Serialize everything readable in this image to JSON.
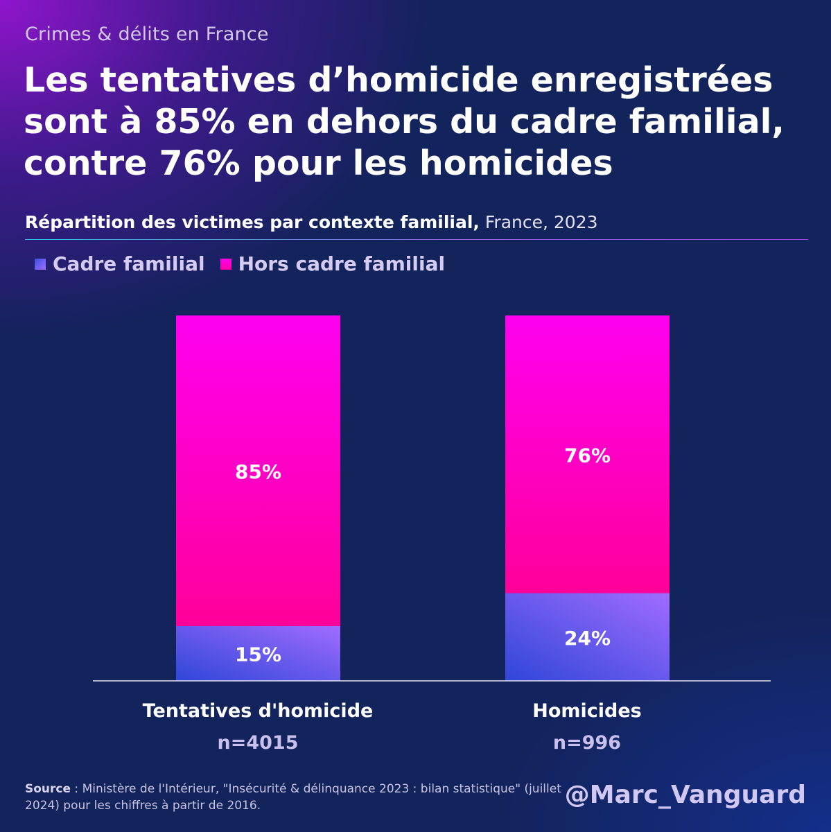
{
  "kicker": "Crimes & délits en France",
  "headline": "Les tentatives d’homicide enregistrées sont à 85% en dehors du cadre familial, contre 76% pour les homicides",
  "subtitle": {
    "strong": "Répartition des victimes par contexte familial,",
    "light": " France, 2023"
  },
  "legend": {
    "cadre": "Cadre familial",
    "hors": "Hors cadre familial"
  },
  "colors": {
    "cadre_start": "#2f47d8",
    "cadre_end": "#a06cff",
    "hors_top": "#ff00f0",
    "hors_bottom": "#ff0099"
  },
  "categories": [
    {
      "label": "Tentatives d'homicide",
      "n": "n=4015"
    },
    {
      "label": "Homicides",
      "n": "n=996"
    }
  ],
  "chart_data": {
    "type": "bar",
    "stacked": true,
    "categories": [
      "Tentatives d'homicide",
      "Homicides"
    ],
    "series": [
      {
        "name": "Cadre familial",
        "values": [
          15,
          24
        ],
        "labels": [
          "15%",
          "24%"
        ]
      },
      {
        "name": "Hors cadre familial",
        "values": [
          85,
          76
        ],
        "labels": [
          "85%",
          "76%"
        ]
      }
    ],
    "ylim": [
      0,
      100
    ],
    "grid": false,
    "legend_position": "top-left"
  },
  "source": {
    "key": "Source",
    "text": " : Ministère de l'Intérieur, \"Insécurité & délinquance 2023 : bilan statistique\" (juillet 2024) pour les chiffres à partir de 2016."
  },
  "handle": "@Marc_Vanguard"
}
